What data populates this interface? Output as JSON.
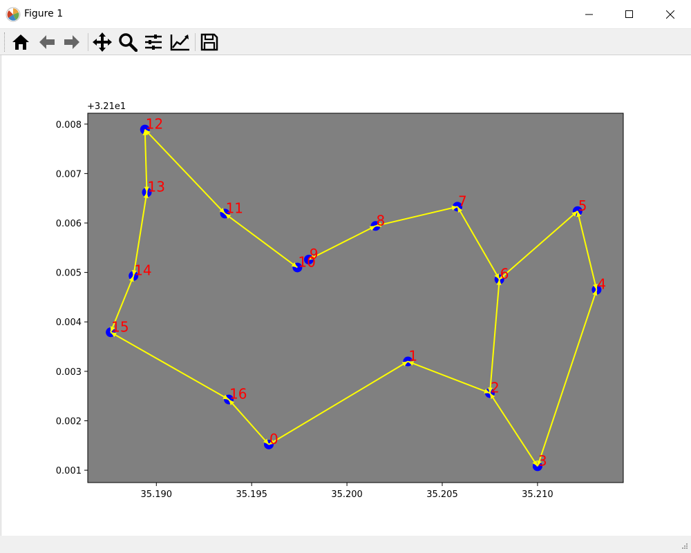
{
  "window": {
    "title": "Figure 1"
  },
  "toolbar": {
    "buttons": [
      {
        "name": "home-icon",
        "tooltip": "Home"
      },
      {
        "name": "back-icon",
        "tooltip": "Back"
      },
      {
        "name": "forward-icon",
        "tooltip": "Forward"
      },
      {
        "name": "pan-icon",
        "tooltip": "Pan"
      },
      {
        "name": "zoom-icon",
        "tooltip": "Zoom"
      },
      {
        "name": "configure-subplots-icon",
        "tooltip": "Subplots"
      },
      {
        "name": "edit-axis-icon",
        "tooltip": "Customize"
      },
      {
        "name": "save-icon",
        "tooltip": "Save"
      }
    ]
  },
  "colors": {
    "axes_bg": "#808080",
    "marker": "#0000ff",
    "arrow": "#ffff00",
    "label": "#ff0000"
  },
  "chart_data": {
    "type": "scatter",
    "title": "",
    "xlabel": "",
    "ylabel": "",
    "y_offset_text": "+3.21e1",
    "xlim": [
      35.1864,
      35.2145
    ],
    "ylim": [
      0.00075,
      0.00822
    ],
    "xticks": [
      35.19,
      35.195,
      35.2,
      35.205,
      35.21
    ],
    "xtick_labels": [
      "35.190",
      "35.195",
      "35.200",
      "35.205",
      "35.210"
    ],
    "yticks": [
      0.001,
      0.002,
      0.003,
      0.004,
      0.005,
      0.006,
      0.007,
      0.008
    ],
    "ytick_labels": [
      "0.001",
      "0.002",
      "0.003",
      "0.004",
      "0.005",
      "0.006",
      "0.007",
      "0.008"
    ],
    "grid": false,
    "points": [
      {
        "label": "0",
        "x": 35.1959,
        "y": 0.00152
      },
      {
        "label": "1",
        "x": 35.2032,
        "y": 0.0032
      },
      {
        "label": "2",
        "x": 35.2075,
        "y": 0.00256
      },
      {
        "label": "3",
        "x": 35.21,
        "y": 0.00108
      },
      {
        "label": "4",
        "x": 35.2131,
        "y": 0.00465
      },
      {
        "label": "5",
        "x": 35.2121,
        "y": 0.00624
      },
      {
        "label": "6",
        "x": 35.208,
        "y": 0.00486
      },
      {
        "label": "7",
        "x": 35.2058,
        "y": 0.00633
      },
      {
        "label": "8",
        "x": 35.2015,
        "y": 0.00594
      },
      {
        "label": "9",
        "x": 35.198,
        "y": 0.00526
      },
      {
        "label": "10",
        "x": 35.1974,
        "y": 0.0051
      },
      {
        "label": "11",
        "x": 35.1936,
        "y": 0.00619
      },
      {
        "label": "12",
        "x": 35.1894,
        "y": 0.00789
      },
      {
        "label": "13",
        "x": 35.1895,
        "y": 0.00662
      },
      {
        "label": "14",
        "x": 35.1888,
        "y": 0.00493
      },
      {
        "label": "15",
        "x": 35.1876,
        "y": 0.00379
      },
      {
        "label": "16",
        "x": 35.1938,
        "y": 0.00243
      }
    ],
    "edges": [
      [
        0,
        1
      ],
      [
        1,
        2
      ],
      [
        2,
        3
      ],
      [
        3,
        4
      ],
      [
        4,
        5
      ],
      [
        5,
        6
      ],
      [
        6,
        7
      ],
      [
        7,
        8
      ],
      [
        8,
        9
      ],
      [
        10,
        11
      ],
      [
        11,
        12
      ],
      [
        12,
        13
      ],
      [
        13,
        14
      ],
      [
        14,
        15
      ],
      [
        15,
        16
      ],
      [
        16,
        0
      ],
      [
        6,
        2
      ]
    ]
  }
}
